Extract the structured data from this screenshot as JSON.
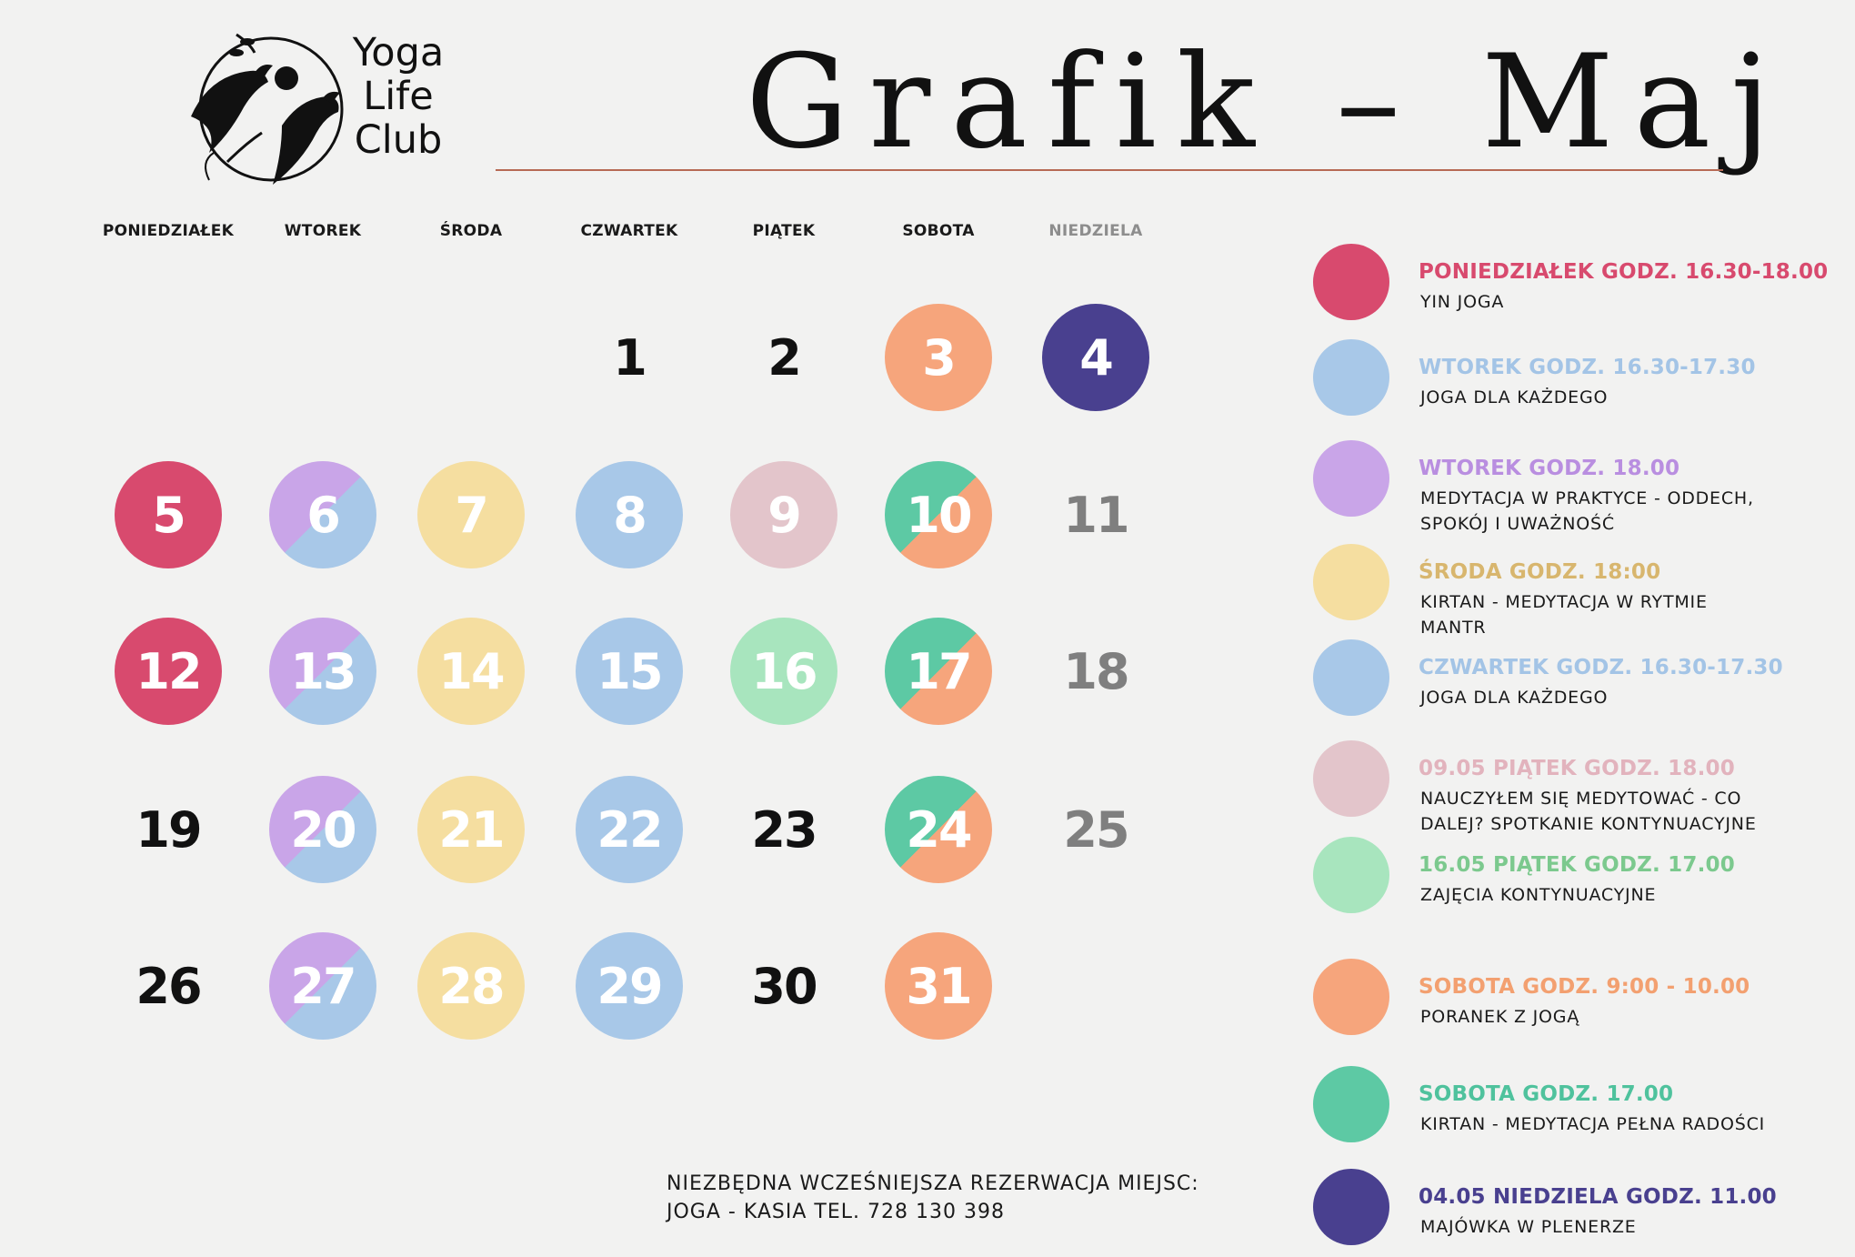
{
  "logo": {
    "line1": "Yoga",
    "line2": "Life",
    "line3": "Club"
  },
  "title": "Grafik – Maj",
  "colors": {
    "pink": "#d84a6e",
    "blue": "#a8c8e8",
    "lavender": "#c9a5e8",
    "yellow": "#f5dea0",
    "rose": "#e3c5cb",
    "mint": "#a8e5be",
    "orange": "#f6a57c",
    "teal": "#5dc9a4",
    "indigo": "#49408f"
  },
  "weekdays": [
    "PONIEDZIAŁEK",
    "WTOREK",
    "ŚRODA",
    "CZWARTEK",
    "PIĄTEK",
    "SOBOTA",
    "NIEDZIELA"
  ],
  "calendar": [
    {
      "day": "1",
      "style": "plain"
    },
    {
      "day": "2",
      "style": "plain"
    },
    {
      "day": "3",
      "style": "orange"
    },
    {
      "day": "4",
      "style": "indigo"
    },
    {
      "day": "5",
      "style": "pink"
    },
    {
      "day": "6",
      "style": "lavender-blue"
    },
    {
      "day": "7",
      "style": "yellow"
    },
    {
      "day": "8",
      "style": "blue"
    },
    {
      "day": "9",
      "style": "rose"
    },
    {
      "day": "10",
      "style": "teal-orange"
    },
    {
      "day": "11",
      "style": "grey"
    },
    {
      "day": "12",
      "style": "pink"
    },
    {
      "day": "13",
      "style": "lavender-blue"
    },
    {
      "day": "14",
      "style": "yellow"
    },
    {
      "day": "15",
      "style": "blue"
    },
    {
      "day": "16",
      "style": "mint"
    },
    {
      "day": "17",
      "style": "teal-orange"
    },
    {
      "day": "18",
      "style": "grey"
    },
    {
      "day": "19",
      "style": "plain"
    },
    {
      "day": "20",
      "style": "lavender-blue"
    },
    {
      "day": "21",
      "style": "yellow"
    },
    {
      "day": "22",
      "style": "blue"
    },
    {
      "day": "23",
      "style": "plain"
    },
    {
      "day": "24",
      "style": "teal-orange"
    },
    {
      "day": "25",
      "style": "grey"
    },
    {
      "day": "26",
      "style": "plain"
    },
    {
      "day": "27",
      "style": "lavender-blue"
    },
    {
      "day": "28",
      "style": "yellow"
    },
    {
      "day": "29",
      "style": "blue"
    },
    {
      "day": "30",
      "style": "plain"
    },
    {
      "day": "31",
      "style": "orange"
    }
  ],
  "legend": [
    {
      "color": "pink",
      "title": "PONIEDZIAŁEK GODZ. 16.30-18.00",
      "desc": "YIN JOGA"
    },
    {
      "color": "blue",
      "title": "WTOREK GODZ. 16.30-17.30",
      "desc": "JOGA DLA KAŻDEGO"
    },
    {
      "color": "lavender",
      "title": "WTOREK GODZ. 18.00",
      "desc": "MEDYTACJA W PRAKTYCE - ODDECH,\nSPOKÓJ I UWAŻNOŚĆ"
    },
    {
      "color": "yellow",
      "title": "ŚRODA GODZ. 18:00",
      "desc": "KIRTAN - MEDYTACJA W RYTMIE\nMANTR"
    },
    {
      "color": "blue",
      "title": "CZWARTEK GODZ. 16.30-17.30",
      "desc": "JOGA DLA KAŻDEGO"
    },
    {
      "color": "rose",
      "title": "09.05 PIĄTEK GODZ. 18.00",
      "desc": "NAUCZYŁEM SIĘ MEDYTOWAĆ - CO\nDALEJ? SPOTKANIE KONTYNUACYJNE"
    },
    {
      "color": "mint",
      "title": "16.05 PIĄTEK GODZ. 17.00",
      "desc": "ZAJĘCIA KONTYNUACYJNE"
    },
    {
      "color": "orange",
      "title": "SOBOTA GODZ. 9:00 - 10.00",
      "desc": "PORANEK Z JOGĄ"
    },
    {
      "color": "teal",
      "title": "SOBOTA GODZ. 17.00",
      "desc": "KIRTAN - MEDYTACJA PEŁNA RADOŚCI"
    },
    {
      "color": "indigo",
      "title": "04.05 NIEDZIELA GODZ. 11.00",
      "desc": "MAJÓWKA W PLENERZE"
    }
  ],
  "legend_title_colors": [
    "#d84a6e",
    "#a3c4e6",
    "#b98ee0",
    "#d8b66e",
    "#a3c4e6",
    "#e2b3bd",
    "#7cc98e",
    "#f3a070",
    "#4fc29d",
    "#49408f"
  ],
  "footer": {
    "line1": "NIEZBĘDNA WCZEŚNIEJSZA REZERWACJA MIEJSC:",
    "line2": "JOGA - KASIA TEL. 728 130 398"
  }
}
